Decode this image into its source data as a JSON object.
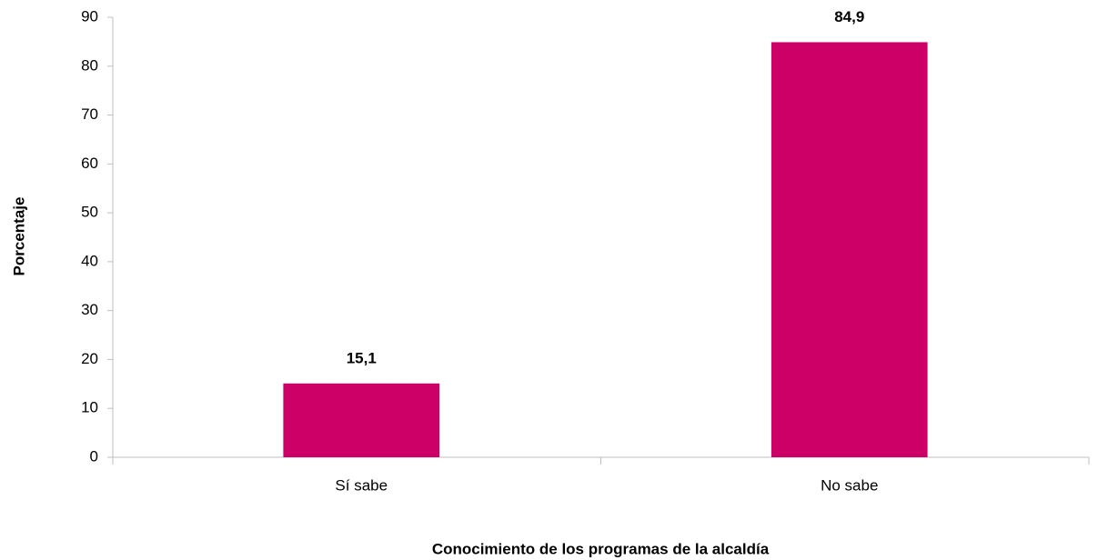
{
  "chart_data": {
    "type": "bar",
    "x_label": "Conocimiento de los programas de la alcaldía",
    "y_label": "Porcentaje",
    "categories": [
      "Sí sabe",
      "No sabe"
    ],
    "values": [
      15.1,
      84.9
    ],
    "value_labels": [
      "15,1",
      "84,9"
    ],
    "color": "#cc0066",
    "ylim": [
      0,
      90
    ],
    "yticks": [
      0,
      10,
      20,
      30,
      40,
      50,
      60,
      70,
      80,
      90
    ],
    "grid": false
  }
}
